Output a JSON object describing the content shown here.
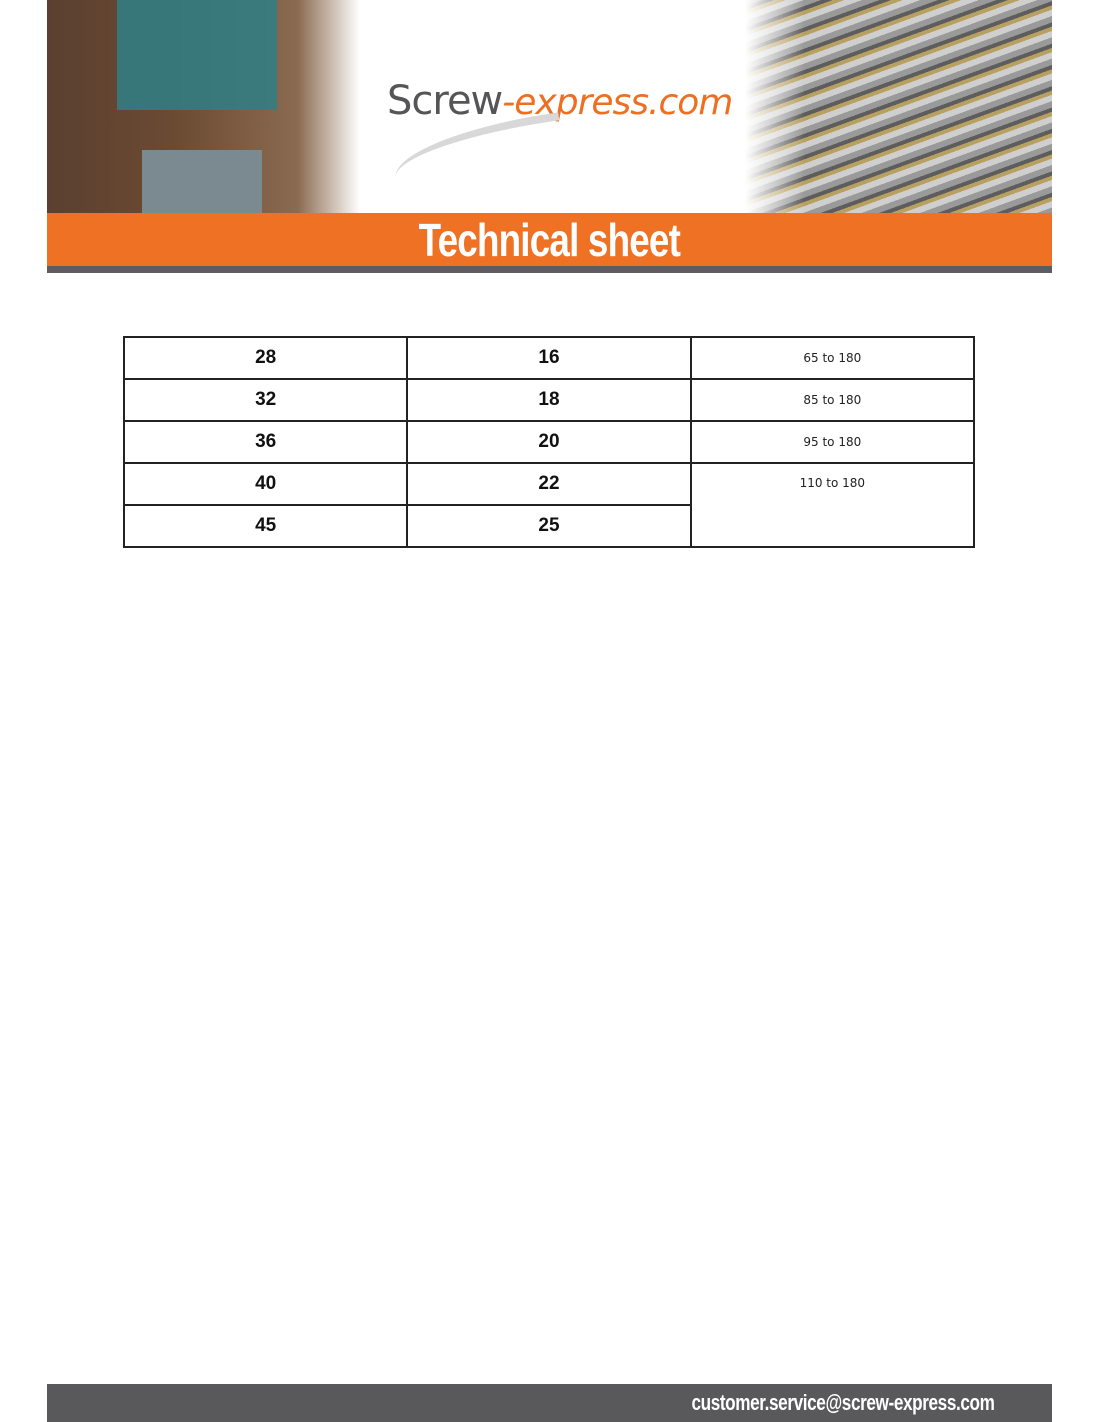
{
  "header": {
    "logo_part1": "Screw",
    "logo_part2": "-express.com",
    "title": "Technical sheet",
    "brand_color": "#ee7124"
  },
  "table": {
    "rows": [
      [
        "28",
        "16",
        "65 to 180"
      ],
      [
        "32",
        "18",
        "85 to 180"
      ],
      [
        "36",
        "20",
        "95 to 180"
      ],
      [
        "40",
        "22",
        "110 to 180"
      ],
      [
        "45",
        "25",
        ""
      ]
    ]
  },
  "footer": {
    "email": "customer.service@screw-express.com"
  }
}
